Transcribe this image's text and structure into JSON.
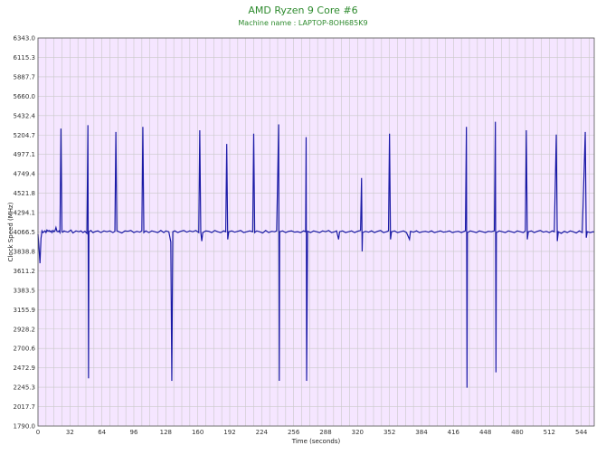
{
  "chart_data": {
    "type": "line",
    "title": "AMD Ryzen 9 Core #6",
    "subtitle": "Machine name : LAPTOP-8OH685K9",
    "xlabel": "Time (seconds)",
    "ylabel": "Clock Speed (MHz)",
    "xlim": [
      0,
      557
    ],
    "ylim": [
      1790.0,
      6343.0
    ],
    "x_ticks": [
      0,
      32,
      64,
      96,
      128,
      160,
      192,
      224,
      256,
      288,
      320,
      352,
      384,
      416,
      448,
      480,
      512,
      544
    ],
    "y_ticks": [
      1790.0,
      2017.7,
      2245.3,
      2472.9,
      2700.6,
      2928.2,
      3155.9,
      3383.5,
      3611.2,
      3838.8,
      4066.5,
      4294.1,
      4521.8,
      4749.4,
      4977.1,
      5204.7,
      5432.4,
      5660.0,
      5887.7,
      6115.3,
      6343.0
    ],
    "grid": true,
    "colors": {
      "line": "#1a1aa6",
      "plot_bg": "#f5e6ff",
      "grid": "#c9c9c9",
      "title": "#2e8b2e"
    },
    "series": [
      {
        "baseline": 4066,
        "values": [
          [
            0,
            4040
          ],
          [
            1,
            3880
          ],
          [
            2,
            3700
          ],
          [
            3,
            3990
          ],
          [
            4,
            4080
          ],
          [
            5,
            4060
          ],
          [
            6,
            4070
          ],
          [
            7,
            4080
          ],
          [
            8,
            4060
          ],
          [
            9,
            4090
          ],
          [
            10,
            4075
          ],
          [
            11,
            4085
          ],
          [
            12,
            4070
          ],
          [
            13,
            4080
          ],
          [
            14,
            4060
          ],
          [
            15,
            4085
          ],
          [
            16,
            4070
          ],
          [
            17,
            4080
          ],
          [
            18,
            4120
          ],
          [
            19,
            4075
          ],
          [
            20,
            4070
          ],
          [
            21,
            4080
          ],
          [
            22,
            4060
          ],
          [
            23,
            5280
          ],
          [
            24,
            4070
          ],
          [
            25,
            4065
          ],
          [
            26,
            4080
          ],
          [
            27,
            4075
          ],
          [
            30,
            4065
          ],
          [
            33,
            4090
          ],
          [
            35,
            4055
          ],
          [
            38,
            4080
          ],
          [
            41,
            4070
          ],
          [
            43,
            4080
          ],
          [
            45,
            4060
          ],
          [
            47,
            4075
          ],
          [
            49,
            4050
          ],
          [
            50,
            5320
          ],
          [
            50.6,
            2350
          ],
          [
            51,
            4070
          ],
          [
            53,
            4085
          ],
          [
            55,
            4060
          ],
          [
            58,
            4075
          ],
          [
            60,
            4080
          ],
          [
            63,
            4060
          ],
          [
            66,
            4080
          ],
          [
            69,
            4070
          ],
          [
            72,
            4080
          ],
          [
            75,
            4060
          ],
          [
            77,
            4075
          ],
          [
            78,
            5240
          ],
          [
            79,
            4080
          ],
          [
            81,
            4070
          ],
          [
            84,
            4055
          ],
          [
            87,
            4080
          ],
          [
            90,
            4075
          ],
          [
            93,
            4085
          ],
          [
            96,
            4060
          ],
          [
            99,
            4075
          ],
          [
            102,
            4065
          ],
          [
            104,
            4080
          ],
          [
            105,
            5300
          ],
          [
            106,
            4060
          ],
          [
            108,
            4080
          ],
          [
            111,
            4060
          ],
          [
            114,
            4080
          ],
          [
            117,
            4070
          ],
          [
            120,
            4060
          ],
          [
            123,
            4085
          ],
          [
            126,
            4060
          ],
          [
            128,
            4080
          ],
          [
            131,
            4070
          ],
          [
            133,
            3950
          ],
          [
            134,
            2320
          ],
          [
            135,
            4070
          ],
          [
            137,
            4080
          ],
          [
            140,
            4060
          ],
          [
            143,
            4075
          ],
          [
            146,
            4085
          ],
          [
            149,
            4065
          ],
          [
            152,
            4080
          ],
          [
            155,
            4070
          ],
          [
            158,
            4085
          ],
          [
            161,
            4060
          ],
          [
            162,
            5260
          ],
          [
            163,
            4070
          ],
          [
            164,
            3960
          ],
          [
            165,
            4060
          ],
          [
            168,
            4080
          ],
          [
            171,
            4075
          ],
          [
            174,
            4060
          ],
          [
            177,
            4085
          ],
          [
            180,
            4070
          ],
          [
            183,
            4060
          ],
          [
            186,
            4080
          ],
          [
            188,
            4070
          ],
          [
            189,
            5100
          ],
          [
            190,
            3980
          ],
          [
            191,
            4070
          ],
          [
            194,
            4080
          ],
          [
            197,
            4065
          ],
          [
            200,
            4075
          ],
          [
            203,
            4085
          ],
          [
            206,
            4060
          ],
          [
            209,
            4070
          ],
          [
            212,
            4080
          ],
          [
            215,
            4070
          ],
          [
            216,
            5220
          ],
          [
            217,
            4060
          ],
          [
            219,
            4080
          ],
          [
            222,
            4070
          ],
          [
            225,
            4055
          ],
          [
            228,
            4085
          ],
          [
            231,
            4060
          ],
          [
            234,
            4075
          ],
          [
            237,
            4070
          ],
          [
            239,
            4080
          ],
          [
            241,
            5330
          ],
          [
            241.6,
            2320
          ],
          [
            242,
            4070
          ],
          [
            245,
            4080
          ],
          [
            248,
            4060
          ],
          [
            251,
            4075
          ],
          [
            254,
            4080
          ],
          [
            257,
            4065
          ],
          [
            260,
            4070
          ],
          [
            263,
            4060
          ],
          [
            266,
            4080
          ],
          [
            268,
            4070
          ],
          [
            268.5,
            5180
          ],
          [
            269,
            2320
          ],
          [
            270,
            4075
          ],
          [
            273,
            4060
          ],
          [
            276,
            4080
          ],
          [
            279,
            4070
          ],
          [
            282,
            4060
          ],
          [
            285,
            4080
          ],
          [
            288,
            4070
          ],
          [
            291,
            4085
          ],
          [
            294,
            4060
          ],
          [
            297,
            4070
          ],
          [
            299,
            4080
          ],
          [
            301,
            3980
          ],
          [
            302,
            4070
          ],
          [
            305,
            4080
          ],
          [
            308,
            4060
          ],
          [
            311,
            4070
          ],
          [
            314,
            4080
          ],
          [
            317,
            4060
          ],
          [
            320,
            4075
          ],
          [
            323,
            4085
          ],
          [
            324,
            4700
          ],
          [
            324.6,
            3840
          ],
          [
            325,
            4060
          ],
          [
            328,
            4075
          ],
          [
            331,
            4065
          ],
          [
            334,
            4080
          ],
          [
            337,
            4060
          ],
          [
            340,
            4075
          ],
          [
            343,
            4085
          ],
          [
            346,
            4060
          ],
          [
            349,
            4070
          ],
          [
            351,
            4080
          ],
          [
            352,
            5220
          ],
          [
            353,
            3980
          ],
          [
            354,
            4070
          ],
          [
            357,
            4080
          ],
          [
            360,
            4060
          ],
          [
            363,
            4070
          ],
          [
            366,
            4080
          ],
          [
            369,
            4060
          ],
          [
            372,
            3980
          ],
          [
            373,
            4075
          ],
          [
            376,
            4065
          ],
          [
            379,
            4080
          ],
          [
            382,
            4060
          ],
          [
            385,
            4070
          ],
          [
            388,
            4075
          ],
          [
            391,
            4065
          ],
          [
            394,
            4080
          ],
          [
            397,
            4060
          ],
          [
            400,
            4070
          ],
          [
            403,
            4080
          ],
          [
            406,
            4065
          ],
          [
            409,
            4070
          ],
          [
            412,
            4080
          ],
          [
            415,
            4060
          ],
          [
            418,
            4070
          ],
          [
            421,
            4075
          ],
          [
            424,
            4060
          ],
          [
            428,
            4080
          ],
          [
            429,
            5300
          ],
          [
            429.6,
            2240
          ],
          [
            430,
            4060
          ],
          [
            433,
            4080
          ],
          [
            436,
            4070
          ],
          [
            439,
            4060
          ],
          [
            442,
            4080
          ],
          [
            445,
            4070
          ],
          [
            448,
            4060
          ],
          [
            451,
            4075
          ],
          [
            454,
            4070
          ],
          [
            457,
            4080
          ],
          [
            458,
            5360
          ],
          [
            458.6,
            2420
          ],
          [
            459,
            4060
          ],
          [
            462,
            4080
          ],
          [
            465,
            4070
          ],
          [
            468,
            4060
          ],
          [
            471,
            4080
          ],
          [
            474,
            4070
          ],
          [
            477,
            4060
          ],
          [
            480,
            4080
          ],
          [
            483,
            4070
          ],
          [
            486,
            4060
          ],
          [
            488,
            4080
          ],
          [
            489,
            5260
          ],
          [
            490,
            3980
          ],
          [
            491,
            4070
          ],
          [
            494,
            4080
          ],
          [
            497,
            4060
          ],
          [
            500,
            4075
          ],
          [
            503,
            4085
          ],
          [
            506,
            4065
          ],
          [
            509,
            4075
          ],
          [
            512,
            4060
          ],
          [
            515,
            4080
          ],
          [
            517,
            4070
          ],
          [
            519,
            5210
          ],
          [
            520,
            3960
          ],
          [
            521,
            4070
          ],
          [
            524,
            4050
          ],
          [
            527,
            4075
          ],
          [
            530,
            4060
          ],
          [
            533,
            4080
          ],
          [
            536,
            4070
          ],
          [
            539,
            4055
          ],
          [
            542,
            4080
          ],
          [
            545,
            4060
          ],
          [
            548,
            5240
          ],
          [
            549,
            4000
          ],
          [
            550,
            4070
          ],
          [
            553,
            4060
          ],
          [
            556,
            4070
          ],
          [
            557,
            4065
          ]
        ]
      }
    ]
  }
}
